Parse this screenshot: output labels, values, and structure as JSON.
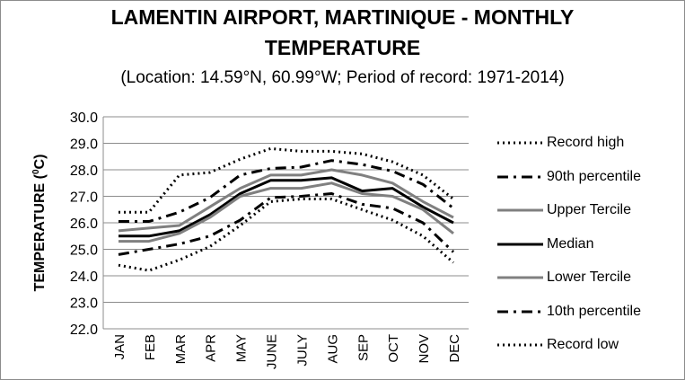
{
  "chart_data": {
    "type": "line",
    "title_line1": "LAMENTIN AIRPORT, MARTINIQUE - MONTHLY",
    "title_line2": "TEMPERATURE",
    "subtitle": "(Location: 14.59°N, 60.99°W; Period of record: 1971-2014)",
    "ylabel_main": "TEMPERATURE (",
    "ylabel_sup": "0",
    "ylabel_end": "C)",
    "ylim": [
      22.0,
      30.0
    ],
    "yticks": [
      "22.0",
      "23.0",
      "24.0",
      "25.0",
      "26.0",
      "27.0",
      "28.0",
      "29.0",
      "30.0"
    ],
    "categories": [
      "JAN",
      "FEB",
      "MAR",
      "APR",
      "MAY",
      "JUNE",
      "JULY",
      "AUG",
      "SEP",
      "OCT",
      "NOV",
      "DEC"
    ],
    "grid": true,
    "legend_position": "right",
    "series": [
      {
        "name": "Record high",
        "style": "dotted",
        "color": "#000000",
        "values": [
          26.4,
          26.4,
          27.8,
          27.9,
          28.4,
          28.8,
          28.7,
          28.7,
          28.6,
          28.3,
          27.8,
          26.9
        ]
      },
      {
        "name": "90th percentile",
        "style": "dashdot",
        "color": "#000000",
        "values": [
          26.05,
          26.05,
          26.4,
          26.95,
          27.8,
          28.05,
          28.1,
          28.35,
          28.2,
          27.95,
          27.45,
          26.55
        ]
      },
      {
        "name": "Upper Tercile",
        "style": "solid",
        "color": "#808080",
        "values": [
          25.7,
          25.8,
          25.9,
          26.6,
          27.3,
          27.8,
          27.8,
          28.0,
          27.8,
          27.5,
          26.8,
          26.2
        ]
      },
      {
        "name": "Median",
        "style": "solid",
        "color": "#000000",
        "values": [
          25.5,
          25.5,
          25.7,
          26.3,
          27.1,
          27.6,
          27.6,
          27.7,
          27.2,
          27.3,
          26.6,
          26.0
        ]
      },
      {
        "name": "Lower Tercile",
        "style": "solid",
        "color": "#808080",
        "values": [
          25.3,
          25.3,
          25.6,
          26.2,
          27.0,
          27.3,
          27.3,
          27.5,
          27.1,
          27.0,
          26.5,
          25.6
        ]
      },
      {
        "name": "10th percentile",
        "style": "dashdot",
        "color": "#000000",
        "values": [
          24.8,
          25.0,
          25.2,
          25.5,
          26.1,
          26.95,
          27.0,
          27.1,
          26.7,
          26.55,
          26.0,
          24.9
        ]
      },
      {
        "name": "Record low",
        "style": "dotted",
        "color": "#000000",
        "values": [
          24.4,
          24.2,
          24.6,
          25.1,
          25.9,
          26.8,
          26.9,
          26.9,
          26.5,
          26.1,
          25.5,
          24.5
        ]
      }
    ]
  }
}
